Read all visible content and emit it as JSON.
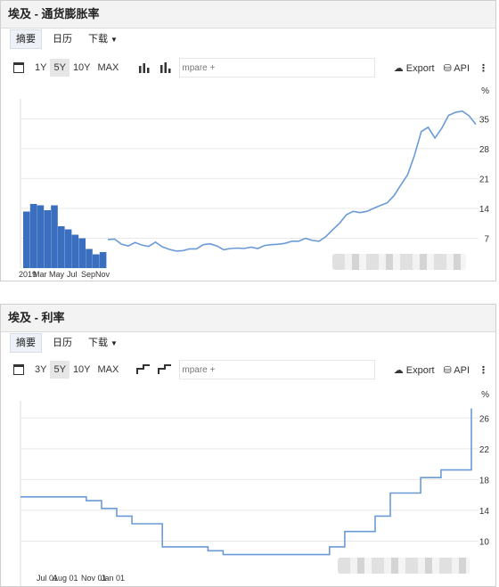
{
  "panel1": {
    "title": "埃及 - 通货膨胀率",
    "tabs": [
      "摘要",
      "日历",
      "下载"
    ],
    "ranges": [
      "1Y",
      "5Y",
      "10Y",
      "MAX"
    ],
    "compare": "mpare +",
    "export": "Export",
    "api": "API",
    "more": "⋮"
  },
  "panel2": {
    "title": "埃及 - 利率",
    "tabs": [
      "摘要",
      "日历",
      "下载"
    ],
    "ranges": [
      "3Y",
      "5Y",
      "10Y",
      "MAX"
    ],
    "compare": "mpare +",
    "export": "Export",
    "api": "API",
    "more": "⋮"
  },
  "colors": {
    "line": "#6b9bd6",
    "bar": "#3a6fbf",
    "grid": "#e8e8e8"
  },
  "chart_data": [
    {
      "type": "line",
      "unit": "%",
      "ylim": [
        0,
        38
      ],
      "yticks": [
        7,
        14,
        21,
        28,
        35
      ],
      "grid": true,
      "x": [
        0,
        3,
        6,
        9,
        12,
        15,
        18,
        21,
        24,
        27,
        30,
        33,
        36,
        39,
        42,
        45,
        48,
        51,
        54,
        57,
        60,
        63,
        66,
        69,
        72,
        75,
        78,
        81,
        84,
        87,
        90,
        93,
        96,
        99,
        102,
        105,
        108,
        111,
        114,
        117,
        120,
        123,
        126,
        129,
        132,
        135,
        138,
        141,
        144,
        147,
        150,
        153,
        156,
        159,
        162
      ],
      "values": [
        6.7,
        6.8,
        5.6,
        5.2,
        6.0,
        5.4,
        5.1,
        6.1,
        5.0,
        4.4,
        4.0,
        4.1,
        4.5,
        4.5,
        5.5,
        5.7,
        5.2,
        4.3,
        4.6,
        4.7,
        4.6,
        4.9,
        4.6,
        5.3,
        5.5,
        5.6,
        5.8,
        6.3,
        6.3,
        7.0,
        6.5,
        6.3,
        7.4,
        9.0,
        10.5,
        12.5,
        13.3,
        13.0,
        13.3,
        14.0,
        14.7,
        15.3,
        17.0,
        19.5,
        21.9,
        26.5,
        32.0,
        33.0,
        30.5,
        32.8,
        35.8,
        36.5,
        36.8,
        35.7,
        33.7
      ]
    },
    {
      "type": "bar",
      "unit": "%",
      "tick_labels": [
        "2019",
        "Mar",
        "May",
        "Jul",
        "Sep",
        "Nov"
      ],
      "values": [
        12.7,
        14.4,
        14.1,
        13.0,
        14.1,
        9.4,
        8.7,
        7.5,
        6.7,
        4.3,
        3.1,
        3.6
      ]
    },
    {
      "type": "line",
      "unit": "%",
      "ylim": [
        6,
        28
      ],
      "yticks": [
        10,
        14,
        18,
        22,
        26
      ],
      "tick_labels": [
        "Jul 01",
        "Aug 01",
        "Nov 01",
        "Jan 01"
      ],
      "grid": true,
      "x": [
        0,
        10,
        20,
        26,
        32,
        38,
        44,
        50,
        56,
        62,
        68,
        74,
        80,
        86,
        92,
        98,
        104,
        110,
        116,
        122,
        128,
        134,
        140,
        146,
        152,
        158,
        162,
        166,
        170,
        174,
        178
      ],
      "values": [
        15.75,
        15.75,
        15.75,
        15.25,
        14.25,
        13.25,
        12.25,
        12.25,
        9.25,
        9.25,
        9.25,
        8.75,
        8.25,
        8.25,
        8.25,
        8.25,
        8.25,
        8.25,
        8.25,
        9.25,
        11.25,
        11.25,
        13.25,
        16.25,
        16.25,
        18.25,
        18.25,
        19.25,
        19.25,
        19.25,
        27.25
      ]
    }
  ]
}
